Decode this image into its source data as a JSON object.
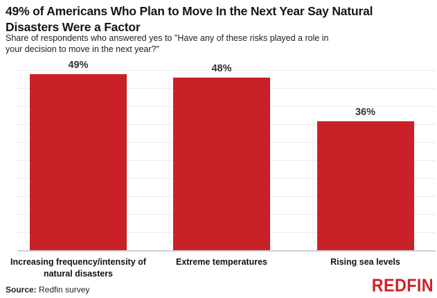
{
  "chart_data": {
    "type": "bar",
    "title": "49% of Americans Who Plan to Move In the Next Year Say Natural Disasters Were a Factor",
    "subtitle": "Share of respondents who answered yes to \"Have any of these risks played a role in your decision to move in the next year?\"",
    "categories": [
      "Increasing frequency/intensity of natural disasters",
      "Extreme temperatures",
      "Rising sea levels"
    ],
    "values": [
      49,
      48,
      36
    ],
    "value_labels": [
      "49%",
      "48%",
      "36%"
    ],
    "xlabel": "",
    "ylabel": "",
    "ylim": [
      0,
      50
    ],
    "gridline_step": 5,
    "gridline_style": "dotted",
    "y_tick_labels_visible": false,
    "legend_position": "none",
    "bar_color": "#c92127",
    "value_label_color": "#333333",
    "source": "Redfin survey"
  },
  "footer": {
    "source_label": "Source:",
    "source_text": " Redfin survey",
    "logo_text": "REDFIN",
    "logo_color": "#cd2128"
  }
}
